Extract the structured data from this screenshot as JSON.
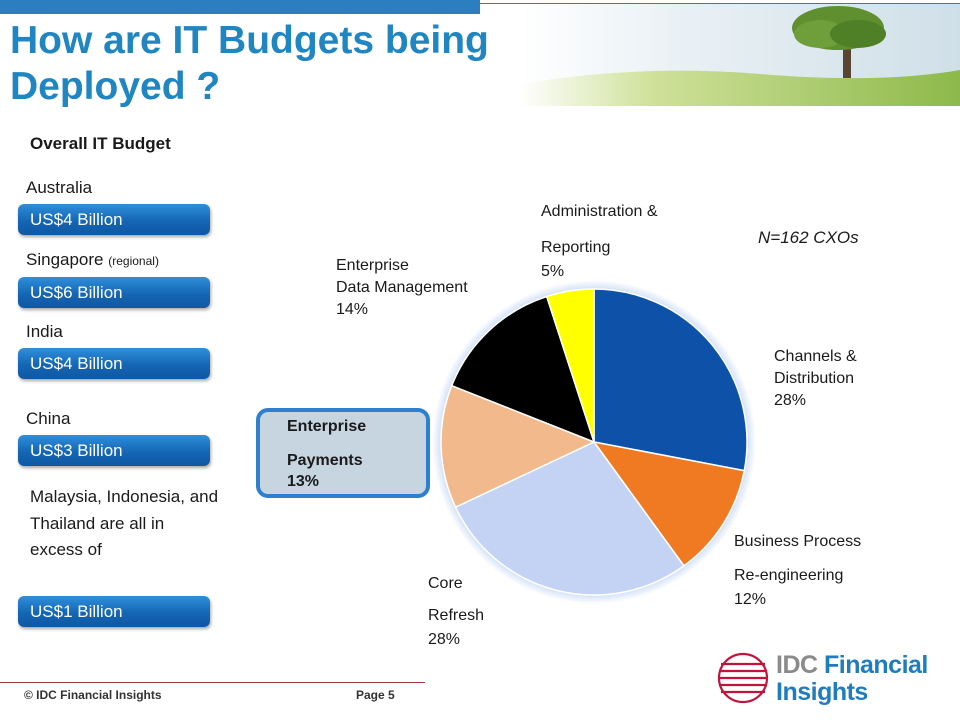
{
  "title": "How are IT Budgets being Deployed ?",
  "section_label": "Overall IT Budget",
  "countries": [
    {
      "name": "Australia",
      "qualifier": "",
      "budget": "US$4 Billion"
    },
    {
      "name": "Singapore",
      "qualifier": "(regional)",
      "budget": "US$6 Billion"
    },
    {
      "name": "India",
      "qualifier": "",
      "budget": "US$4 Billion"
    },
    {
      "name": "China",
      "qualifier": "",
      "budget": "US$3 Billion"
    }
  ],
  "note": {
    "text": "Malaysia, Indonesia, and Thailand are all in excess of",
    "budget": "US$1 Billion"
  },
  "sample_note": "N=162 CXOs",
  "chart_data": {
    "type": "pie",
    "slices": [
      {
        "label_lines": [
          "Channels &",
          "Distribution"
        ],
        "value": 28,
        "value_text": "28%",
        "color": "#0d52a8"
      },
      {
        "label_lines": [
          "Business Process",
          "Re-engineering"
        ],
        "value": 12,
        "value_text": "12%",
        "color": "#f07a22"
      },
      {
        "label_lines": [
          "Core",
          "Refresh"
        ],
        "value": 28,
        "value_text": "28%",
        "color": "#c4d2f4"
      },
      {
        "label_lines": [
          "Enterprise",
          "Payments"
        ],
        "value": 13,
        "value_text": "13%",
        "color": "#f2b98c"
      },
      {
        "label_lines": [
          "Enterprise",
          "Data Management"
        ],
        "value": 14,
        "value_text": "14%",
        "color": "#000000"
      },
      {
        "label_lines": [
          "Administration &",
          "Reporting"
        ],
        "value": 5,
        "value_text": "5%",
        "color": "#ffff00"
      }
    ]
  },
  "footer": {
    "copyright": "© IDC Financial Insights",
    "page": "Page 5"
  },
  "logo": {
    "line1": "IDC",
    "line1b": "Financial",
    "line2": "Insights",
    "color": "#c0143c"
  }
}
